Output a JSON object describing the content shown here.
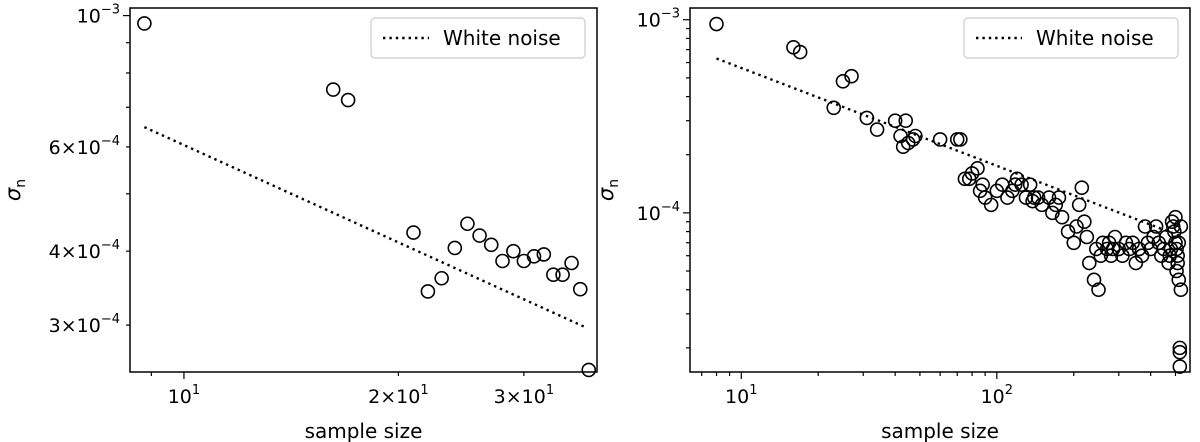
{
  "chart_data": [
    {
      "type": "scatter",
      "xlabel": "sample size",
      "ylabel": "σ",
      "ylabel_sub": "n",
      "xscale": "log",
      "yscale": "log",
      "xlim": [
        8.4,
        38
      ],
      "ylim": [
        0.00025,
        0.00103
      ],
      "xticks_major": [
        {
          "value": 10,
          "base": "10",
          "exp": "1"
        }
      ],
      "xticks_minor": [
        {
          "value": 20,
          "coef": "2",
          "base": "10",
          "exp": "1"
        },
        {
          "value": 30,
          "coef": "3",
          "base": "10",
          "exp": "1"
        }
      ],
      "yticks_major": [
        {
          "value": 0.001,
          "base": "10",
          "exp": "−3"
        }
      ],
      "yticks_minor": [
        {
          "value": 0.0006,
          "coef": "6",
          "base": "10",
          "exp": "−4"
        },
        {
          "value": 0.0004,
          "coef": "4",
          "base": "10",
          "exp": "−4"
        },
        {
          "value": 0.0003,
          "coef": "3",
          "base": "10",
          "exp": "−4"
        }
      ],
      "legend": {
        "label": "White noise",
        "position": "upper right",
        "style": "dotted"
      },
      "reference_line": {
        "name": "White noise",
        "x": [
          8.8,
          36.5
        ],
        "y": [
          0.000648,
          0.000298
        ]
      },
      "series": [
        {
          "marker": "open circle",
          "x": [
            8.8,
            16.2,
            17,
            21,
            22,
            23,
            24,
            25,
            26,
            27,
            28,
            29,
            30,
            31,
            32,
            33,
            34,
            35,
            36,
            37
          ],
          "y": [
            0.00097,
            0.00075,
            0.00072,
            0.00043,
            0.000342,
            0.00036,
            0.000405,
            0.000445,
            0.000425,
            0.00041,
            0.000385,
            0.0004,
            0.000385,
            0.000392,
            0.000395,
            0.000365,
            0.000365,
            0.000382,
            0.000345,
            0.000252
          ]
        }
      ]
    },
    {
      "type": "scatter",
      "xlabel": "sample size",
      "ylabel": "σ",
      "ylabel_sub": "n",
      "xscale": "log",
      "yscale": "log",
      "xlim": [
        6.3,
        570
      ],
      "ylim": [
        1.5e-05,
        0.00115
      ],
      "xticks_major": [
        {
          "value": 10,
          "base": "10",
          "exp": "1"
        },
        {
          "value": 100,
          "base": "10",
          "exp": "2"
        }
      ],
      "yticks_major": [
        {
          "value": 0.001,
          "base": "10",
          "exp": "−3"
        },
        {
          "value": 0.0001,
          "base": "10",
          "exp": "−4"
        }
      ],
      "legend": {
        "label": "White noise",
        "position": "upper right",
        "style": "dotted"
      },
      "reference_line": {
        "name": "White noise",
        "x": [
          8,
          520
        ],
        "y": [
          0.00063,
          7.6e-05
        ]
      },
      "series": [
        {
          "marker": "open circle",
          "x": [
            8,
            16,
            17,
            23,
            25,
            27,
            31,
            34,
            40,
            42,
            43,
            44,
            45,
            47,
            48,
            60,
            70,
            72,
            75,
            78,
            80,
            84,
            86,
            88,
            90,
            95,
            100,
            105,
            110,
            115,
            118,
            120,
            125,
            130,
            135,
            138,
            140,
            145,
            150,
            160,
            165,
            170,
            175,
            180,
            190,
            200,
            205,
            210,
            215,
            220,
            225,
            230,
            240,
            245,
            250,
            255,
            260,
            270,
            275,
            280,
            285,
            290,
            300,
            310,
            320,
            330,
            340,
            350,
            360,
            370,
            380,
            390,
            400,
            410,
            420,
            430,
            440,
            450,
            460,
            470,
            475,
            480,
            485,
            490,
            495,
            500,
            500,
            505,
            505,
            510,
            510,
            515,
            515,
            520,
            520,
            520,
            525,
            525
          ],
          "y": [
            0.00095,
            0.00072,
            0.00068,
            0.00035,
            0.00048,
            0.00051,
            0.00031,
            0.00027,
            0.0003,
            0.00025,
            0.00022,
            0.0003,
            0.00023,
            0.00024,
            0.00025,
            0.00024,
            0.00024,
            0.00024,
            0.00015,
            0.00015,
            0.00016,
            0.00017,
            0.00013,
            0.00014,
            0.00012,
            0.00011,
            0.00013,
            0.00014,
            0.00012,
            0.00013,
            0.00014,
            0.00015,
            0.00014,
            0.00012,
            0.00014,
            0.000115,
            0.00012,
            0.00012,
            0.00011,
            0.00012,
            0.0001,
            0.00011,
            0.00012,
            9.5e-05,
            8e-05,
            7e-05,
            8.5e-05,
            0.00011,
            0.000135,
            9e-05,
            7.5e-05,
            5.5e-05,
            4.5e-05,
            6.5e-05,
            4e-05,
            6e-05,
            7e-05,
            6.5e-05,
            7e-05,
            6e-05,
            6.5e-05,
            7.5e-05,
            6.5e-05,
            6e-05,
            7e-05,
            6.5e-05,
            7e-05,
            5.5e-05,
            6.5e-05,
            6e-05,
            8.5e-05,
            7e-05,
            6.5e-05,
            7.5e-05,
            8.5e-05,
            7e-05,
            6e-05,
            6.5e-05,
            7.5e-05,
            5.5e-05,
            6e-05,
            6.5e-05,
            9e-05,
            8.5e-05,
            8e-05,
            9.5e-05,
            7e-05,
            5e-05,
            6.5e-05,
            5.5e-05,
            6e-05,
            4.5e-05,
            7e-05,
            2e-05,
            1.9e-05,
            1.6e-05,
            4e-05,
            8.5e-05
          ]
        }
      ]
    }
  ]
}
